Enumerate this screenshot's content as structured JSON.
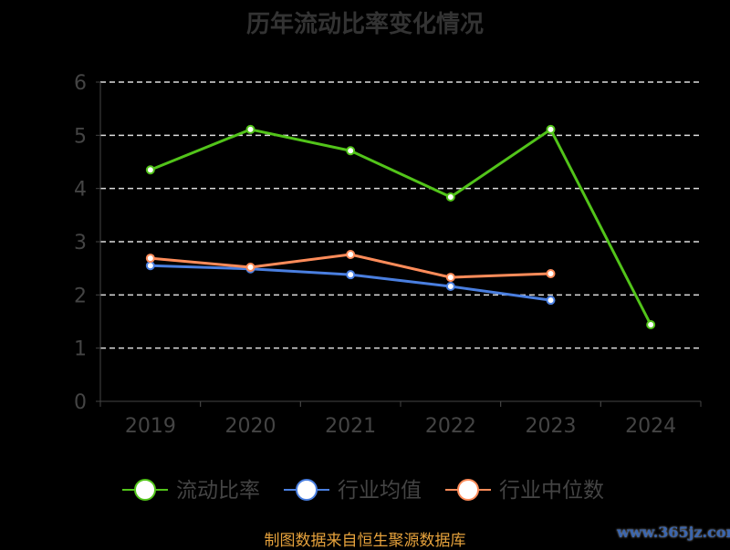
{
  "chart_data": {
    "type": "line",
    "title": "历年流动比率变化情况",
    "categories": [
      "2019",
      "2020",
      "2021",
      "2022",
      "2023",
      "2024"
    ],
    "ylim": [
      0,
      6
    ],
    "yticks": [
      "0",
      "1",
      "2",
      "3",
      "4",
      "5",
      "6"
    ],
    "grid": true,
    "legend_position": "bottom",
    "series": [
      {
        "name": "流动比率",
        "color": "#52c41a",
        "values": [
          4.35,
          5.11,
          4.71,
          3.84,
          5.11,
          1.44
        ]
      },
      {
        "name": "行业均值",
        "color": "#4a7fe0",
        "values": [
          2.55,
          2.49,
          2.38,
          2.16,
          1.9,
          null
        ]
      },
      {
        "name": "行业中位数",
        "color": "#ff8c5a",
        "values": [
          2.69,
          2.52,
          2.76,
          2.33,
          2.4,
          null
        ]
      }
    ]
  },
  "source": "制图数据来自恒生聚源数据库",
  "watermark": "www.365jz.com"
}
